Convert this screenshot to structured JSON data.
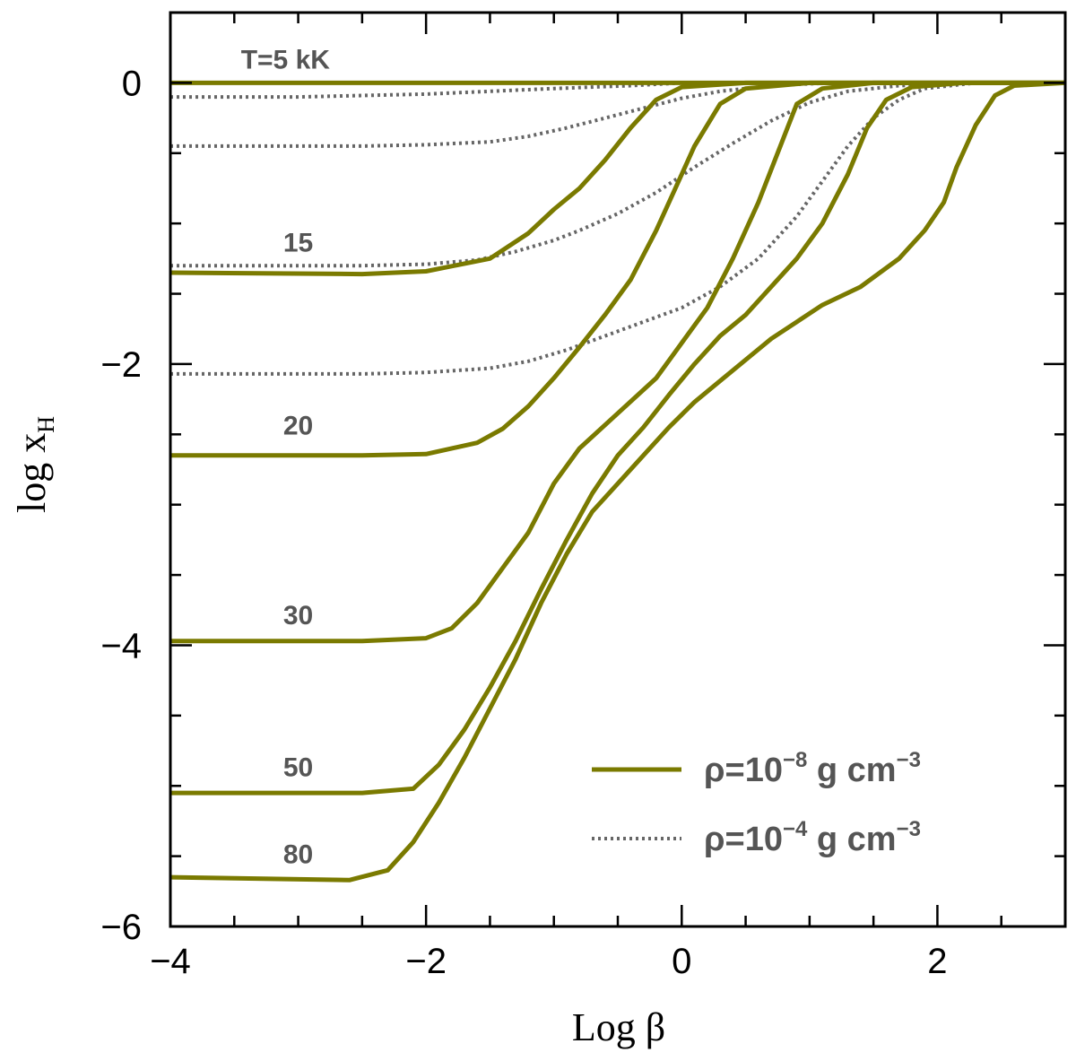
{
  "chart_data": {
    "type": "line",
    "xlabel": "Log β",
    "ylabel": "log x",
    "ylabel_sub": "H",
    "xlim": [
      -4,
      3
    ],
    "ylim": [
      -6,
      0.5
    ],
    "xticks_major": [
      -4,
      -2,
      0,
      2
    ],
    "xtick_labels": [
      "−4",
      "−2",
      "0",
      "2"
    ],
    "yticks_major": [
      -6,
      -4,
      -2,
      0
    ],
    "ytick_labels": [
      "−6",
      "−4",
      "−2",
      "0"
    ],
    "grid": false,
    "colors": {
      "solid": "#7a7a00",
      "dotted": "#666666",
      "label": "#555555"
    },
    "curve_labels": [
      {
        "text": "T=5 kK",
        "x": -3.1,
        "y": 0.1
      },
      {
        "text": "15",
        "x": -3.0,
        "y": -1.2
      },
      {
        "text": "20",
        "x": -3.0,
        "y": -2.5
      },
      {
        "text": "30",
        "x": -3.0,
        "y": -3.85
      },
      {
        "text": "50",
        "x": -3.0,
        "y": -4.93
      },
      {
        "text": "80",
        "x": -3.0,
        "y": -5.55
      }
    ],
    "legend": {
      "placement": "bottom-right",
      "entries": [
        {
          "style": "solid",
          "text": "ρ=10",
          "sup": "−8",
          "unit": " g cm",
          "unit_sup": "−3"
        },
        {
          "style": "dotted",
          "text": "ρ=10",
          "sup": "−4",
          "unit": " g cm",
          "unit_sup": "−3"
        }
      ]
    },
    "series": [
      {
        "style": "solid",
        "temperature": "5",
        "x": [
          -4,
          3
        ],
        "y": [
          0,
          0
        ]
      },
      {
        "style": "solid",
        "temperature": "15",
        "x": [
          -4,
          -2.5,
          -2.0,
          -1.5,
          -1.2,
          -1.0,
          -0.8,
          -0.6,
          -0.4,
          -0.2,
          0.0,
          0.5,
          3
        ],
        "y": [
          -1.35,
          -1.36,
          -1.34,
          -1.25,
          -1.07,
          -0.9,
          -0.75,
          -0.55,
          -0.32,
          -0.12,
          -0.03,
          0,
          0
        ]
      },
      {
        "style": "solid",
        "temperature": "20",
        "x": [
          -4,
          -2.5,
          -2.0,
          -1.6,
          -1.4,
          -1.2,
          -1.0,
          -0.8,
          -0.6,
          -0.4,
          -0.2,
          -0.05,
          0.1,
          0.3,
          0.5,
          1.0,
          3
        ],
        "y": [
          -2.65,
          -2.65,
          -2.64,
          -2.56,
          -2.46,
          -2.3,
          -2.1,
          -1.88,
          -1.65,
          -1.4,
          -1.05,
          -0.75,
          -0.45,
          -0.15,
          -0.04,
          0,
          0
        ]
      },
      {
        "style": "solid",
        "temperature": "30",
        "x": [
          -4,
          -2.5,
          -2.0,
          -1.8,
          -1.6,
          -1.4,
          -1.2,
          -1.0,
          -0.8,
          -0.5,
          -0.2,
          0.0,
          0.2,
          0.4,
          0.6,
          0.75,
          0.9,
          1.1,
          1.5,
          3
        ],
        "y": [
          -3.97,
          -3.97,
          -3.95,
          -3.88,
          -3.7,
          -3.45,
          -3.2,
          -2.85,
          -2.6,
          -2.35,
          -2.1,
          -1.85,
          -1.6,
          -1.25,
          -0.85,
          -0.5,
          -0.15,
          -0.04,
          0,
          0
        ]
      },
      {
        "style": "solid",
        "temperature": "50",
        "x": [
          -4,
          -2.5,
          -2.1,
          -1.9,
          -1.7,
          -1.5,
          -1.3,
          -1.1,
          -0.9,
          -0.7,
          -0.5,
          -0.3,
          -0.1,
          0.1,
          0.3,
          0.5,
          0.7,
          0.9,
          1.1,
          1.3,
          1.45,
          1.6,
          1.8,
          2.2,
          3
        ],
        "y": [
          -5.05,
          -5.05,
          -5.02,
          -4.85,
          -4.6,
          -4.3,
          -3.97,
          -3.6,
          -3.25,
          -2.92,
          -2.65,
          -2.45,
          -2.22,
          -2.0,
          -1.8,
          -1.65,
          -1.45,
          -1.25,
          -1.0,
          -0.65,
          -0.32,
          -0.12,
          -0.03,
          0,
          0
        ]
      },
      {
        "style": "solid",
        "temperature": "80",
        "x": [
          -4,
          -2.6,
          -2.3,
          -2.1,
          -1.9,
          -1.7,
          -1.5,
          -1.3,
          -1.1,
          -0.9,
          -0.7,
          -0.5,
          -0.3,
          -0.1,
          0.1,
          0.3,
          0.5,
          0.7,
          0.9,
          1.1,
          1.4,
          1.7,
          1.9,
          2.05,
          2.15,
          2.3,
          2.45,
          2.6,
          3
        ],
        "y": [
          -5.65,
          -5.67,
          -5.6,
          -5.4,
          -5.12,
          -4.8,
          -4.45,
          -4.1,
          -3.7,
          -3.35,
          -3.05,
          -2.85,
          -2.65,
          -2.45,
          -2.27,
          -2.12,
          -1.97,
          -1.82,
          -1.7,
          -1.58,
          -1.45,
          -1.25,
          -1.05,
          -0.85,
          -0.6,
          -0.3,
          -0.09,
          -0.02,
          0
        ]
      },
      {
        "style": "dotted",
        "temperature": "5",
        "x": [
          -4,
          -2,
          3
        ],
        "y": [
          0,
          0,
          0
        ]
      },
      {
        "style": "dotted",
        "temperature": "15",
        "x": [
          -4,
          -3,
          -2.0,
          -1.5,
          -1.0,
          -0.7,
          -0.4,
          -0.2,
          0.0,
          0.3,
          3
        ],
        "y": [
          -0.1,
          -0.1,
          -0.08,
          -0.06,
          -0.04,
          -0.03,
          -0.02,
          -0.01,
          0,
          0,
          0
        ]
      },
      {
        "style": "dotted",
        "temperature": "20",
        "x": [
          -4,
          -2.5,
          -2.0,
          -1.5,
          -1.2,
          -0.9,
          -0.6,
          -0.3,
          0.0,
          0.3,
          0.6,
          0.9,
          1.2,
          1.6,
          3
        ],
        "y": [
          -0.45,
          -0.45,
          -0.44,
          -0.42,
          -0.38,
          -0.32,
          -0.25,
          -0.18,
          -0.11,
          -0.06,
          -0.03,
          -0.01,
          0,
          0,
          0
        ]
      },
      {
        "style": "dotted",
        "temperature": "30",
        "x": [
          -4,
          -2.5,
          -2.0,
          -1.6,
          -1.3,
          -1.0,
          -0.8,
          -0.5,
          -0.2,
          0.1,
          0.4,
          0.7,
          1.0,
          1.3,
          1.7,
          2.2,
          3
        ],
        "y": [
          -1.3,
          -1.3,
          -1.29,
          -1.26,
          -1.2,
          -1.12,
          -1.05,
          -0.93,
          -0.78,
          -0.6,
          -0.43,
          -0.27,
          -0.14,
          -0.06,
          -0.02,
          0,
          0
        ]
      },
      {
        "style": "dotted",
        "temperature": "50",
        "x": [
          -4,
          -2.5,
          -2.0,
          -1.5,
          -1.2,
          -0.9,
          -0.6,
          -0.3,
          0.0,
          0.3,
          0.6,
          0.9,
          1.1,
          1.3,
          1.5,
          1.7,
          1.9,
          2.3,
          3
        ],
        "y": [
          -2.07,
          -2.07,
          -2.06,
          -2.03,
          -1.98,
          -1.9,
          -1.8,
          -1.7,
          -1.6,
          -1.45,
          -1.25,
          -0.95,
          -0.7,
          -0.45,
          -0.25,
          -0.12,
          -0.04,
          0,
          0
        ]
      }
    ]
  }
}
